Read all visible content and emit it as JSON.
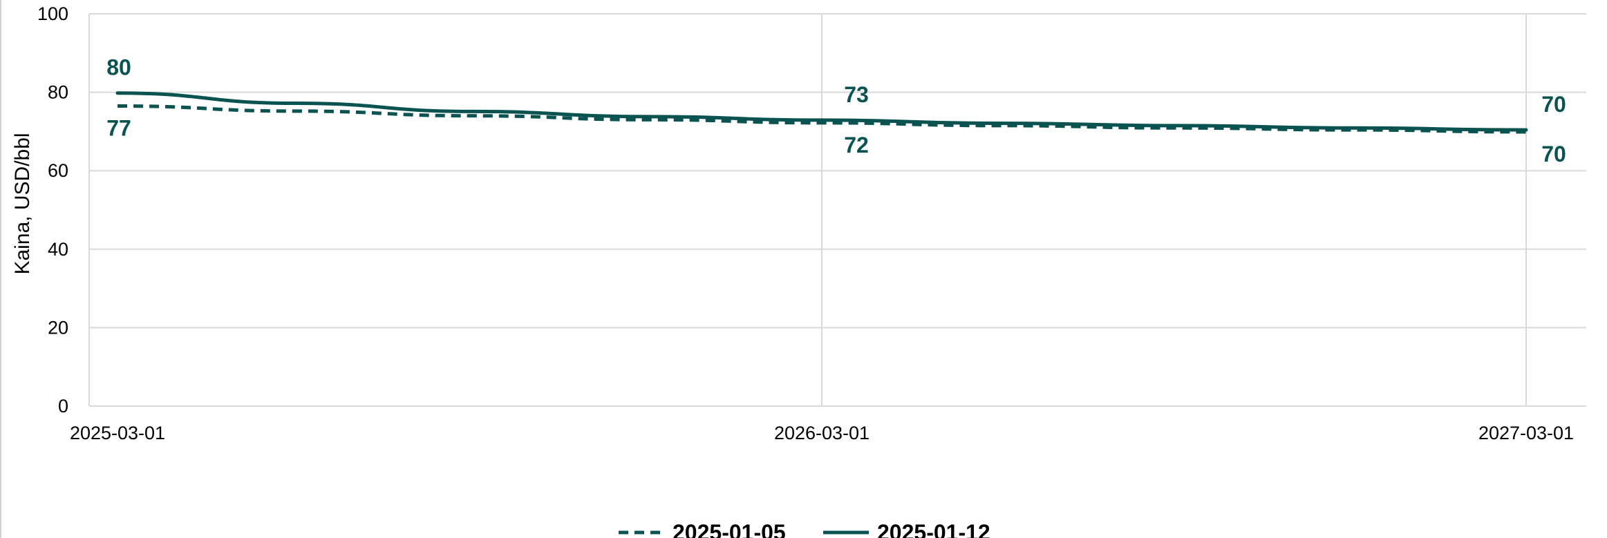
{
  "chart_data": {
    "type": "line",
    "title": "",
    "xlabel": "",
    "ylabel": "Kaina, USD/bbl",
    "x": [
      "2025-03-01",
      "2026-03-01",
      "2027-03-01"
    ],
    "xlim": [
      "2025-03-01",
      "2027-03-01"
    ],
    "ylim": [
      0,
      100
    ],
    "yticks": [
      0,
      20,
      40,
      60,
      80,
      100
    ],
    "grid": true,
    "legend_position": "bottom",
    "series": [
      {
        "name": "2025-01-05",
        "style": "dashed",
        "color": "#0b5351",
        "x": [
          "2025-03-01",
          "2025-06-01",
          "2025-09-01",
          "2025-12-01",
          "2026-03-01",
          "2026-06-01",
          "2026-09-01",
          "2026-12-01",
          "2027-03-01"
        ],
        "values": [
          76.5,
          75.2,
          74.0,
          73.0,
          72.2,
          71.5,
          70.9,
          70.4,
          69.9
        ],
        "data_labels": [
          {
            "x": "2025-03-01",
            "text": "77"
          },
          {
            "x": "2026-03-01",
            "text": "72"
          },
          {
            "x": "2027-03-01",
            "text": "70"
          }
        ]
      },
      {
        "name": "2025-01-12",
        "style": "solid",
        "color": "#0b5351",
        "x": [
          "2025-03-01",
          "2025-06-01",
          "2025-09-01",
          "2025-12-01",
          "2026-03-01",
          "2026-06-01",
          "2026-09-01",
          "2026-12-01",
          "2027-03-01"
        ],
        "values": [
          79.8,
          77.2,
          75.1,
          73.8,
          72.9,
          72.1,
          71.5,
          70.9,
          70.4
        ],
        "data_labels": [
          {
            "x": "2025-03-01",
            "text": "80"
          },
          {
            "x": "2026-03-01",
            "text": "73"
          },
          {
            "x": "2027-03-01",
            "text": "70"
          }
        ]
      }
    ]
  }
}
